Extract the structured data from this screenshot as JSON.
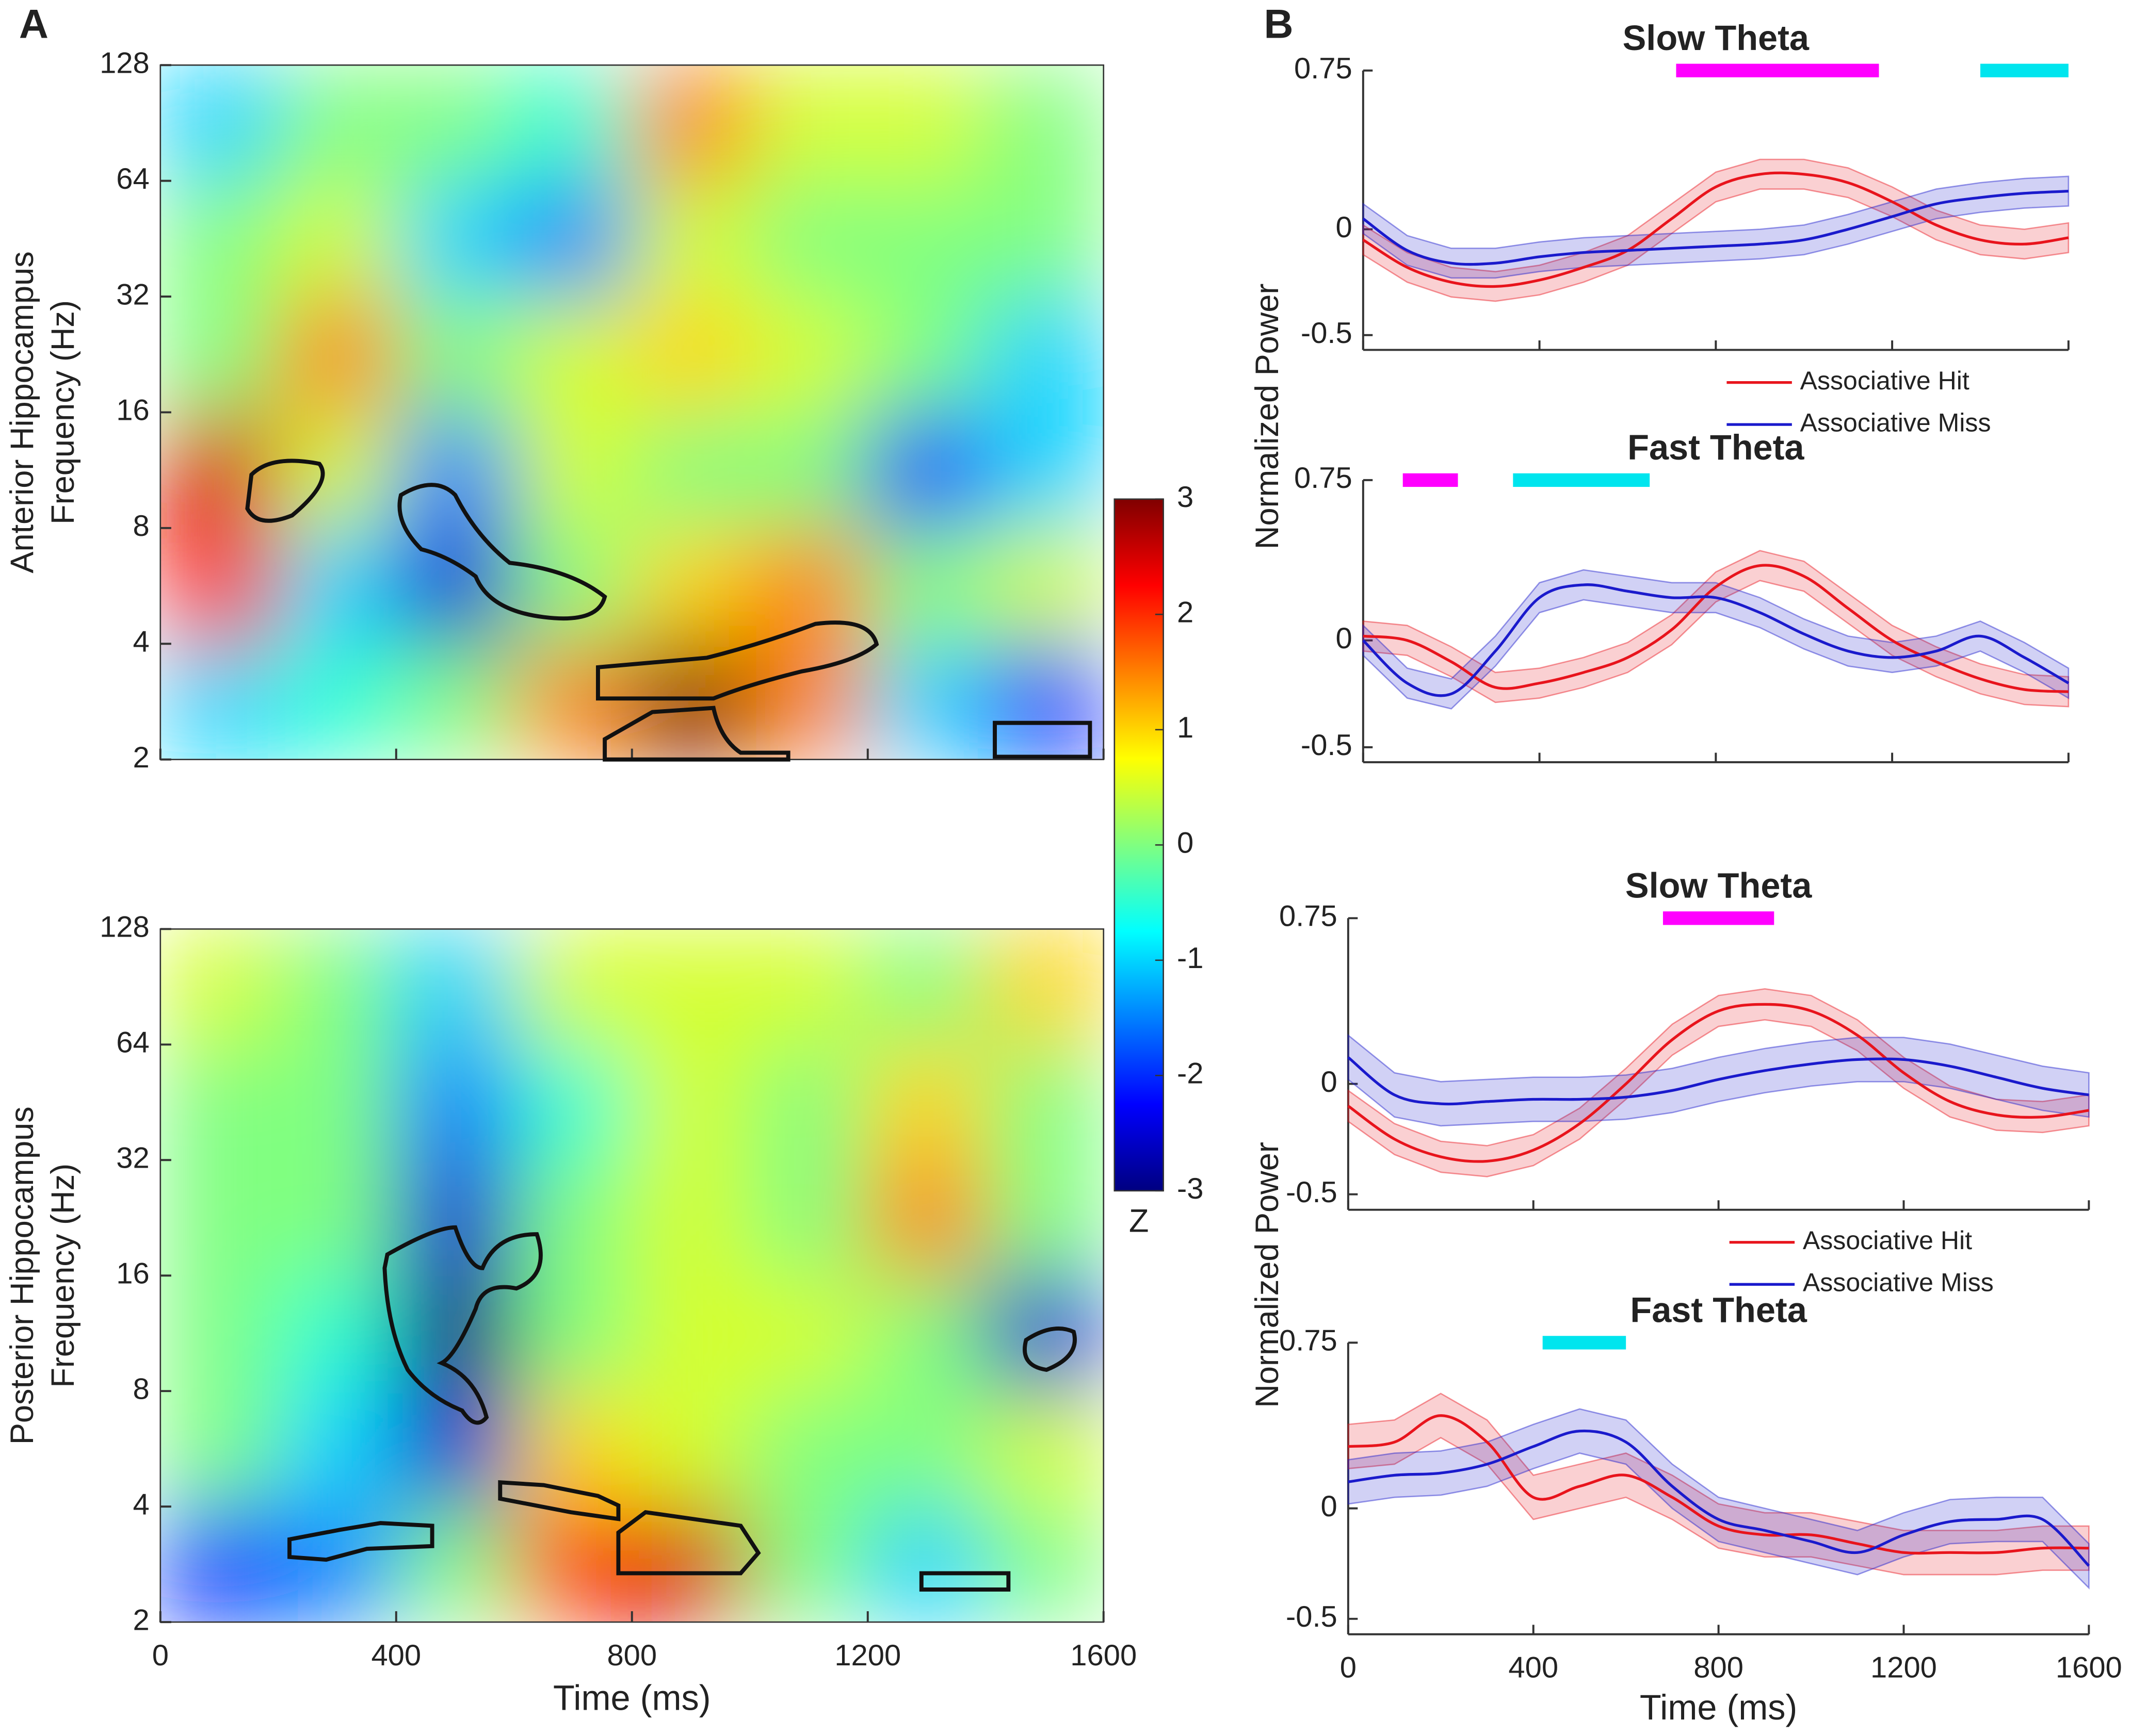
{
  "panel_labels": [
    "A",
    "B"
  ],
  "chart_data": [
    {
      "type": "heatmap",
      "ylabel": [
        "Anterior Hippocampus",
        "Frequency (Hz)"
      ],
      "xlim": [
        0,
        1600
      ],
      "xticks": [
        0,
        400,
        800,
        1200,
        1600
      ],
      "ylim": [
        2,
        128
      ],
      "yticks": [
        2,
        4,
        8,
        16,
        32,
        64,
        128
      ],
      "yscale": "log2",
      "z": [
        [
          -1,
          -0.5,
          0,
          1.5,
          3,
          1.5,
          -1,
          -2
        ],
        [
          2,
          -1,
          -2.5,
          0,
          1,
          1.5,
          0,
          0.5
        ],
        [
          2.5,
          0.5,
          -1.5,
          0.5,
          0,
          0,
          -2,
          -1
        ],
        [
          0,
          1.5,
          0,
          0.5,
          1,
          0.5,
          0,
          -1
        ],
        [
          0,
          0.5,
          -1,
          -1.5,
          0.5,
          0,
          0,
          0
        ],
        [
          -1,
          0,
          0,
          -0.5,
          1.5,
          0.5,
          0.5,
          0
        ]
      ],
      "colorbar": {
        "clim": [
          -3,
          3
        ],
        "ticks": [
          -3,
          -2,
          -1,
          0,
          1,
          2,
          3
        ],
        "label": "Z"
      }
    },
    {
      "type": "heatmap",
      "ylabel": [
        "Posterior Hippocampus",
        "Frequency (Hz)"
      ],
      "xlabel": "Time (ms)",
      "xlim": [
        0,
        1600
      ],
      "xticks": [
        0,
        400,
        800,
        1200,
        1600
      ],
      "ylim": [
        2,
        128
      ],
      "yticks": [
        2,
        4,
        8,
        16,
        32,
        64,
        128
      ],
      "yscale": "log2",
      "z": [
        [
          -2,
          -1.5,
          0,
          2,
          2.5,
          0,
          -1,
          0
        ],
        [
          0,
          -1,
          -2.5,
          1,
          0.5,
          0,
          0,
          0.5
        ],
        [
          0,
          -0.5,
          -3,
          0,
          0.5,
          0.5,
          0,
          -2.5
        ],
        [
          0,
          0,
          -2.5,
          0,
          0.5,
          0,
          1.5,
          0
        ],
        [
          0,
          0,
          -1.5,
          -0.5,
          0.5,
          0,
          1,
          0
        ],
        [
          0.5,
          0,
          -1,
          0.5,
          0.5,
          0.5,
          0,
          1
        ]
      ]
    },
    {
      "type": "line",
      "title": "Slow Theta",
      "ylabel": "Normalized Power",
      "x": [
        0,
        100,
        200,
        300,
        400,
        500,
        600,
        700,
        800,
        900,
        1000,
        1100,
        1200,
        1300,
        1400,
        1500,
        1600
      ],
      "xlim": [
        0,
        1600
      ],
      "xticks": [
        0,
        400,
        800,
        1200,
        1600
      ],
      "ylim": [
        -0.57,
        0.75
      ],
      "yticks": [
        -0.5,
        0,
        0.75
      ],
      "legend": "below",
      "series": [
        {
          "name": "Associative Hit",
          "color": "#e8141c",
          "values": [
            -0.05,
            -0.18,
            -0.25,
            -0.27,
            -0.24,
            -0.18,
            -0.1,
            0.05,
            0.2,
            0.26,
            0.26,
            0.22,
            0.13,
            0.02,
            -0.05,
            -0.07,
            -0.04
          ],
          "err": [
            0.07,
            0.07,
            0.07,
            0.07,
            0.07,
            0.07,
            0.07,
            0.07,
            0.07,
            0.07,
            0.07,
            0.07,
            0.07,
            0.07,
            0.07,
            0.07,
            0.07
          ]
        },
        {
          "name": "Associative Miss",
          "color": "#1a1acc",
          "values": [
            0.05,
            -0.1,
            -0.16,
            -0.16,
            -0.13,
            -0.11,
            -0.1,
            -0.09,
            -0.08,
            -0.07,
            -0.05,
            0,
            0.06,
            0.12,
            0.15,
            0.17,
            0.18
          ],
          "err": [
            0.07,
            0.07,
            0.07,
            0.07,
            0.07,
            0.07,
            0.07,
            0.07,
            0.07,
            0.07,
            0.07,
            0.07,
            0.07,
            0.07,
            0.07,
            0.07,
            0.07
          ]
        }
      ],
      "sig_bars": [
        {
          "color": "#ff00ff",
          "start": 710,
          "end": 1170
        },
        {
          "color": "#00e5ee",
          "start": 1400,
          "end": 1600
        }
      ]
    },
    {
      "type": "line",
      "title": "Fast Theta",
      "x": [
        0,
        100,
        200,
        300,
        400,
        500,
        600,
        700,
        800,
        900,
        1000,
        1100,
        1200,
        1300,
        1400,
        1500,
        1600
      ],
      "xlim": [
        0,
        1600
      ],
      "xticks": [
        0,
        400,
        800,
        1200,
        1600
      ],
      "ylim": [
        -0.57,
        0.75
      ],
      "yticks": [
        -0.5,
        0,
        0.75
      ],
      "series": [
        {
          "name": "Associative Hit",
          "color": "#e8141c",
          "values": [
            0.02,
            0,
            -0.1,
            -0.22,
            -0.2,
            -0.15,
            -0.08,
            0.05,
            0.25,
            0.35,
            0.3,
            0.15,
            0,
            -0.1,
            -0.18,
            -0.23,
            -0.24
          ],
          "err": [
            0.07,
            0.07,
            0.07,
            0.07,
            0.07,
            0.07,
            0.07,
            0.07,
            0.07,
            0.07,
            0.07,
            0.07,
            0.07,
            0.07,
            0.07,
            0.07,
            0.07
          ]
        },
        {
          "name": "Associative Miss",
          "color": "#1a1acc",
          "values": [
            0,
            -0.2,
            -0.25,
            -0.05,
            0.2,
            0.26,
            0.23,
            0.2,
            0.2,
            0.13,
            0.03,
            -0.05,
            -0.08,
            -0.05,
            0.02,
            -0.08,
            -0.2
          ],
          "err": [
            0.07,
            0.07,
            0.07,
            0.07,
            0.07,
            0.07,
            0.07,
            0.07,
            0.07,
            0.07,
            0.07,
            0.07,
            0.07,
            0.07,
            0.07,
            0.07,
            0.07
          ]
        }
      ],
      "sig_bars": [
        {
          "color": "#ff00ff",
          "start": 90,
          "end": 215
        },
        {
          "color": "#00e5ee",
          "start": 340,
          "end": 650
        }
      ]
    },
    {
      "type": "line",
      "title": "Slow Theta",
      "ylabel": "Normalized Power",
      "x": [
        0,
        100,
        200,
        300,
        400,
        500,
        600,
        700,
        800,
        900,
        1000,
        1100,
        1200,
        1300,
        1400,
        1500,
        1600
      ],
      "xlim": [
        0,
        1600
      ],
      "xticks": [
        0,
        400,
        800,
        1200,
        1600
      ],
      "ylim": [
        -0.57,
        0.75
      ],
      "yticks": [
        -0.5,
        0,
        0.75
      ],
      "legend": "below",
      "series": [
        {
          "name": "Associative Hit",
          "color": "#e8141c",
          "values": [
            -0.1,
            -0.25,
            -0.33,
            -0.35,
            -0.3,
            -0.18,
            0,
            0.2,
            0.33,
            0.36,
            0.33,
            0.22,
            0.05,
            -0.08,
            -0.14,
            -0.15,
            -0.12
          ],
          "err": [
            0.07,
            0.07,
            0.07,
            0.07,
            0.07,
            0.07,
            0.07,
            0.07,
            0.07,
            0.07,
            0.07,
            0.07,
            0.07,
            0.07,
            0.07,
            0.07,
            0.07
          ]
        },
        {
          "name": "Associative Miss",
          "color": "#1a1acc",
          "values": [
            0.12,
            -0.05,
            -0.09,
            -0.08,
            -0.07,
            -0.07,
            -0.06,
            -0.03,
            0.02,
            0.06,
            0.09,
            0.11,
            0.11,
            0.08,
            0.03,
            -0.02,
            -0.05
          ],
          "err": [
            0.1,
            0.1,
            0.1,
            0.1,
            0.1,
            0.1,
            0.1,
            0.1,
            0.1,
            0.1,
            0.1,
            0.1,
            0.1,
            0.1,
            0.1,
            0.1,
            0.1
          ]
        }
      ],
      "sig_bars": [
        {
          "color": "#ff00ff",
          "start": 680,
          "end": 920
        }
      ]
    },
    {
      "type": "line",
      "title": "Fast Theta",
      "xlabel": "Time (ms)",
      "x": [
        0,
        100,
        200,
        300,
        400,
        500,
        600,
        700,
        800,
        900,
        1000,
        1100,
        1200,
        1300,
        1400,
        1500,
        1600
      ],
      "xlim": [
        0,
        1600
      ],
      "xticks": [
        0,
        400,
        800,
        1200,
        1600
      ],
      "ylim": [
        -0.57,
        0.75
      ],
      "yticks": [
        -0.5,
        0,
        0.75
      ],
      "series": [
        {
          "name": "Associative Hit",
          "color": "#e8141c",
          "values": [
            0.28,
            0.3,
            0.42,
            0.3,
            0.05,
            0.1,
            0.15,
            0.05,
            -0.08,
            -0.12,
            -0.12,
            -0.16,
            -0.2,
            -0.2,
            -0.2,
            -0.18,
            -0.18
          ],
          "err": [
            0.1,
            0.1,
            0.1,
            0.1,
            0.1,
            0.1,
            0.1,
            0.1,
            0.1,
            0.1,
            0.1,
            0.1,
            0.1,
            0.1,
            0.1,
            0.1,
            0.1
          ]
        },
        {
          "name": "Associative Miss",
          "color": "#1a1acc",
          "values": [
            0.12,
            0.15,
            0.16,
            0.2,
            0.28,
            0.35,
            0.3,
            0.1,
            -0.05,
            -0.1,
            -0.15,
            -0.2,
            -0.12,
            -0.06,
            -0.05,
            -0.05,
            -0.26
          ],
          "err": [
            0.1,
            0.1,
            0.1,
            0.1,
            0.1,
            0.1,
            0.1,
            0.1,
            0.1,
            0.1,
            0.1,
            0.1,
            0.1,
            0.1,
            0.1,
            0.1,
            0.1
          ]
        }
      ],
      "sig_bars": [
        {
          "color": "#00e5ee",
          "start": 420,
          "end": 600
        }
      ]
    }
  ]
}
